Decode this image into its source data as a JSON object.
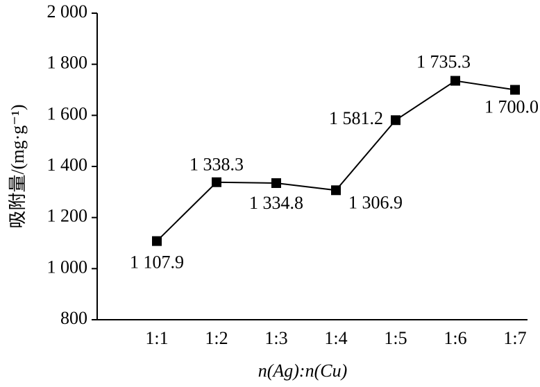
{
  "chart_data": {
    "type": "line",
    "x_label": "n(Ag):n(Cu)",
    "y_label": "吸附量/(mg·g⁻¹)",
    "categories": [
      "1:1",
      "1:2",
      "1:3",
      "1:4",
      "1:5",
      "1:6",
      "1:7"
    ],
    "values": [
      1107.9,
      1338.3,
      1334.8,
      1306.9,
      1581.2,
      1735.3,
      1700.0
    ],
    "value_labels": [
      "1 107.9",
      "1 338.3",
      "1 334.8",
      "1 306.9",
      "1 581.2",
      "1 735.3",
      "1 700.0"
    ],
    "color": "#000000",
    "ylim": [
      800,
      2000
    ],
    "yticks": [
      {
        "value": 800,
        "label": "800"
      },
      {
        "value": 1000,
        "label": "1 000"
      },
      {
        "value": 1200,
        "label": "1 200"
      },
      {
        "value": 1400,
        "label": "1 400"
      },
      {
        "value": 1600,
        "label": "1 600"
      },
      {
        "value": 1800,
        "label": "1 800"
      },
      {
        "value": 2000,
        "label": "2 000"
      }
    ],
    "grid": false
  }
}
